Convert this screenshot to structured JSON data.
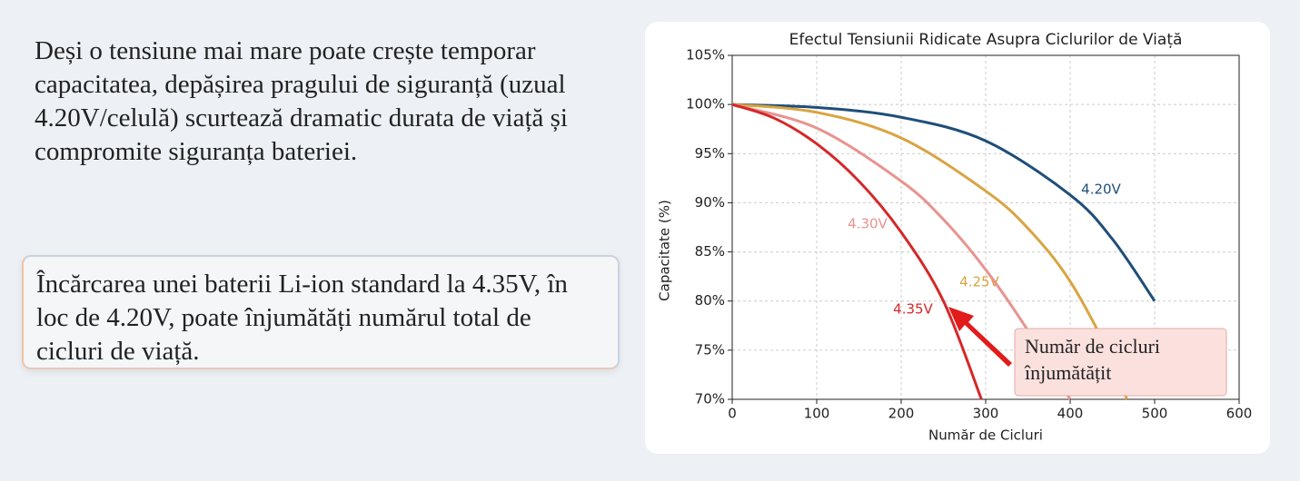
{
  "paragraph": "Deși o tensiune mai mare poate crește temporar capacitatea, depășirea pragului de siguranță (uzual 4.20V/celulă) scurtează dramatic durata de viață și compromite siguranța bateriei.",
  "callout": "Încărcarea unei baterii Li-ion standard la 4.35V, în loc de 4.20V, poate înjumătăți numărul total de cicluri de viață.",
  "chart_data": {
    "type": "line",
    "title": "Efectul Tensiunii Ridicate Asupra Ciclurilor de Viață",
    "x_label": "Număr de Cicluri",
    "y_label": "Capacitate (%)",
    "xlim": [
      0,
      600
    ],
    "xticks": [
      0,
      100,
      200,
      300,
      400,
      500,
      600
    ],
    "ylim": [
      70,
      105
    ],
    "yticks": [
      {
        "value": 70,
        "label": "70%"
      },
      {
        "value": 75,
        "label": "75%"
      },
      {
        "value": 80,
        "label": "80%"
      },
      {
        "value": 85,
        "label": "85%"
      },
      {
        "value": 90,
        "label": "90%"
      },
      {
        "value": 95,
        "label": "95%"
      },
      {
        "value": 100,
        "label": "100%"
      },
      {
        "value": 105,
        "label": "105%"
      }
    ],
    "grid": true,
    "series": [
      {
        "name": "4.20V",
        "color": "#1f4e79",
        "x": [
          0,
          100,
          200,
          300,
          400,
          450,
          500
        ],
        "values": [
          100,
          99.7,
          98.7,
          96.3,
          90.8,
          86.3,
          80
        ]
      },
      {
        "name": "4.25V",
        "color": "#d9a441",
        "x": [
          0,
          100,
          200,
          300,
          350,
          400,
          450,
          467
        ],
        "values": [
          100,
          99.2,
          96.6,
          91.2,
          87.4,
          82,
          74,
          70
        ]
      },
      {
        "name": "4.30V",
        "color": "#e8938f",
        "x": [
          0,
          100,
          200,
          250,
          300,
          350,
          400
        ],
        "values": [
          100,
          97.6,
          92.2,
          88.3,
          83.2,
          77,
          70
        ]
      },
      {
        "name": "4.35V",
        "color": "#d62728",
        "x": [
          0,
          50,
          100,
          150,
          200,
          250,
          295
        ],
        "values": [
          100,
          98.6,
          96,
          92.2,
          87,
          80,
          70
        ]
      }
    ],
    "annotation": [
      "Număr de cicluri",
      "înjumătățit"
    ]
  }
}
